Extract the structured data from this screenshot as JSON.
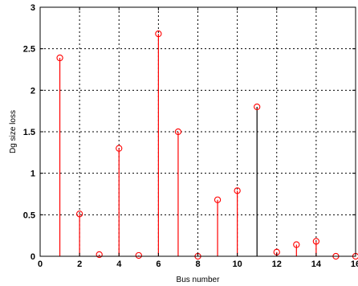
{
  "chart_data": {
    "type": "stem",
    "title": "",
    "xlabel": "Bus number",
    "ylabel": "Dg size loss",
    "xlim": [
      0,
      16
    ],
    "ylim": [
      0,
      3
    ],
    "xticks": [
      "0",
      "2",
      "4",
      "6",
      "8",
      "10",
      "12",
      "14",
      "16"
    ],
    "yticks": [
      "0",
      "0.5",
      "1",
      "1.5",
      "2",
      "2.5",
      "3"
    ],
    "grid": true,
    "x": [
      1,
      2,
      3,
      4,
      5,
      6,
      7,
      8,
      9,
      10,
      11,
      12,
      13,
      14,
      15,
      16
    ],
    "y": [
      2.39,
      0.51,
      0.02,
      1.3,
      0.01,
      2.68,
      1.5,
      0.0,
      0.68,
      0.79,
      1.8,
      0.05,
      0.14,
      0.18,
      0.0,
      0.0
    ],
    "stem_colors": [
      "#ff0000",
      "#ff0000",
      "#ff0000",
      "#ff0000",
      "#ff0000",
      "#ff0000",
      "#ff0000",
      "#ff0000",
      "#ff0000",
      "#ff0000",
      "#000000",
      "#ff0000",
      "#ff0000",
      "#ff0000",
      "#ff0000",
      "#ff0000"
    ],
    "marker": "circle",
    "marker_color": "#ff0000",
    "grid_color": "#000000",
    "axis_color": "#000000"
  }
}
